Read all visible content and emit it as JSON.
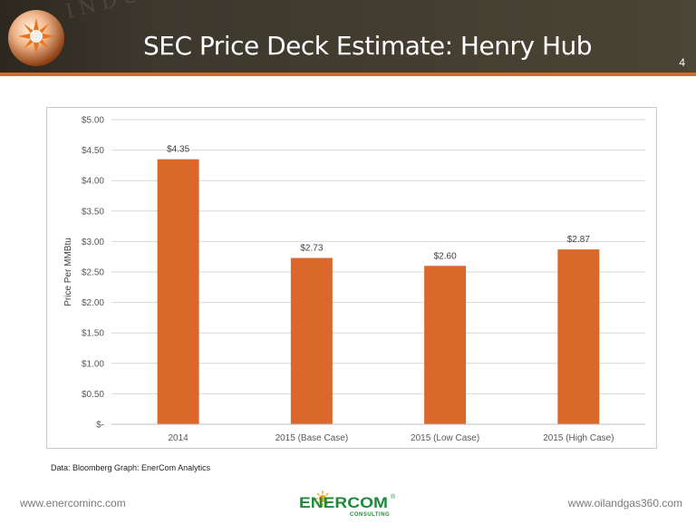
{
  "header": {
    "title": "SEC Price Deck Estimate: Henry Hub",
    "page_number": "4",
    "watermark_text": "INDUSTRY"
  },
  "source_note": "Data: Bloomberg Graph: EnerCom Analytics",
  "footer": {
    "left_url": "www.enercominc.com",
    "right_url": "www.oilandgas360.com",
    "logo_main": "ENERCOM",
    "logo_sub": "CONSULTING",
    "logo_mark": "®"
  },
  "colors": {
    "header_bg": "#3c372c",
    "accent": "#d9682a",
    "bar": "#d9682a",
    "logo_green": "#1e8a3c"
  },
  "chart_data": {
    "type": "bar",
    "categories": [
      "2014",
      "2015 (Base Case)",
      "2015 (Low Case)",
      "2015 (High Case)"
    ],
    "values": [
      4.35,
      2.73,
      2.6,
      2.87
    ],
    "data_labels": [
      "$4.35",
      "$2.73",
      "$2.60",
      "$2.87"
    ],
    "ylabel": "Price Per MMBtu",
    "ylim": [
      0,
      5
    ],
    "yticks": [
      0,
      0.5,
      1,
      1.5,
      2,
      2.5,
      3,
      3.5,
      4,
      4.5,
      5
    ],
    "ytick_labels": [
      "$-",
      "$0.50",
      "$1.00",
      "$1.50",
      "$2.00",
      "$2.50",
      "$3.00",
      "$3.50",
      "$4.00",
      "$4.50",
      "$5.00"
    ],
    "grid": true,
    "legend": "none"
  }
}
